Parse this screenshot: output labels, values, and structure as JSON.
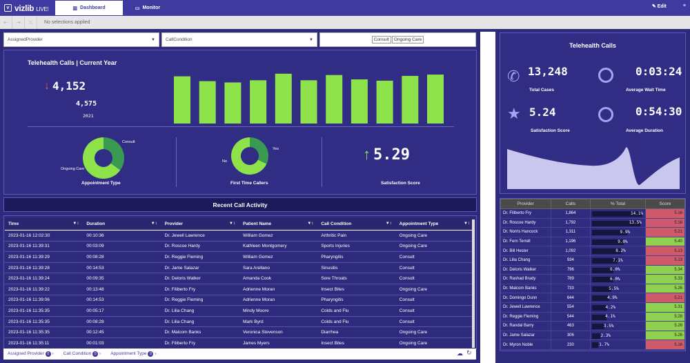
{
  "app": {
    "logo": "vizlib",
    "logo_suffix": "LIVE!"
  },
  "nav": {
    "tabs": [
      {
        "label": "Dashboard"
      },
      {
        "label": "Monitor"
      }
    ],
    "edit_label": "Edit"
  },
  "selections": {
    "text": "No selections applied"
  },
  "filters": {
    "provider": "AssignedProvider",
    "condition": "CallCondition",
    "chips": [
      "Consult",
      "Ongoing Care"
    ]
  },
  "overview": {
    "title": "Telehealth Calls | Current Year",
    "current_value": "4,152",
    "prior_value": "4,575",
    "prior_year": "2021",
    "bars": [
      10.8,
      9.7,
      9.4,
      9.9,
      11.4,
      9.9,
      11.1,
      10.1,
      9.8,
      10.9,
      11.2
    ],
    "appointment": {
      "label": "Appointment Type",
      "consult": "Consult",
      "ongoing": "Ongoing Care",
      "consult_share": 0.35
    },
    "first_time": {
      "label": "First Time Callers",
      "yes": "Yes",
      "no": "No",
      "yes_share": 0.32
    },
    "satisfaction": {
      "label": "Satisfaction Score",
      "value": "5.29"
    }
  },
  "recent": {
    "title": "Recent Call Activity"
  },
  "calls_table": {
    "headers": [
      "Time",
      "Duration",
      "Provider",
      "Patient Name",
      "Call Condition",
      "Appointment Type"
    ],
    "rows": [
      [
        "2023-01-16 12:02:30",
        "00:10:36",
        "Dr. Jewell Lawrence",
        "William Gomez",
        "Arthritic Pain",
        "Ongoing Care"
      ],
      [
        "2023-01-16 11:39:31",
        "00:03:09",
        "Dr. Roscoe Hardy",
        "Kathleen Montgomery",
        "Sports Injuries",
        "Ongoing Care"
      ],
      [
        "2023-01-16 11:39:29",
        "00:08:28",
        "Dr. Reggie Fleming",
        "William Gomez",
        "Pharyngitis",
        "Consult"
      ],
      [
        "2023-01-16 11:39:28",
        "00:14:53",
        "Dr. Jame Salazar",
        "Sara Arellano",
        "Sinusitis",
        "Consult"
      ],
      [
        "2023-01-16 11:39:24",
        "00:09:35",
        "Dr. Deloris Walker",
        "Amanda Cook",
        "Sore Throats",
        "Consult"
      ],
      [
        "2023-01-16 11:39:22",
        "00:13:48",
        "Dr. Filiberto Fry",
        "Adrienne Moran",
        "Insect Bites",
        "Ongoing Care"
      ],
      [
        "2023-01-16 11:39:06",
        "00:14:53",
        "Dr. Reggie Fleming",
        "Adrienne Moran",
        "Pharyngitis",
        "Consult"
      ],
      [
        "2023-01-16 11:35:35",
        "00:05:17",
        "Dr. Lilia Chang",
        "Mindy Moore",
        "Colds and Flu",
        "Consult"
      ],
      [
        "2023-01-16 11:35:35",
        "00:08:28",
        "Dr. Lilia Chang",
        "Mark Byrd",
        "Colds and Flu",
        "Consult"
      ],
      [
        "2023-01-16 11:35:35",
        "00:12:45",
        "Dr. Malcom Banks",
        "Veronica Stevenson",
        "Diarrhea",
        "Ongoing Care"
      ],
      [
        "2023-01-16 11:35:11",
        "00:01:03",
        "Dr. Filiberto Fry",
        "James Myers",
        "Insect Bites",
        "Ongoing Care"
      ]
    ]
  },
  "footer": {
    "items": [
      {
        "label": "Assigned Provider",
        "count": "0"
      },
      {
        "label": "Call Condition",
        "count": "0"
      },
      {
        "label": "Appointment Type",
        "count": "0"
      }
    ]
  },
  "kpis": {
    "title": "Telehealth Calls",
    "total_cases": {
      "value": "13,248",
      "label": "Total Cases"
    },
    "avg_wait": {
      "value": "0:03:24",
      "label": "Average Wait Time"
    },
    "satisfaction": {
      "value": "5.24",
      "label": "Satisfaction Score"
    },
    "avg_duration": {
      "value": "0:54:30",
      "label": "Average Duration"
    }
  },
  "providers": {
    "headers": [
      "Provider",
      "Calls",
      "% Total",
      "Score"
    ],
    "colors": {
      "good": "#8fd14f",
      "bad": "#cf5a6a",
      "neutral": "#b8e986"
    },
    "rows": [
      {
        "name": "Dr. Filiberto Fry",
        "calls": "1,864",
        "pct": "14.1%",
        "share": 14.1,
        "score": "5.16",
        "tone": "bad"
      },
      {
        "name": "Dr. Roscoe Hardy",
        "calls": "1,792",
        "pct": "13.5%",
        "share": 13.5,
        "score": "5.16",
        "tone": "bad"
      },
      {
        "name": "Dr. Norris Hancock",
        "calls": "1,311",
        "pct": "9.9%",
        "share": 9.9,
        "score": "5.21",
        "tone": "bad"
      },
      {
        "name": "Dr. Fern Terrell",
        "calls": "1,196",
        "pct": "9.0%",
        "share": 9.0,
        "score": "5.40",
        "tone": "good"
      },
      {
        "name": "Dr. Bill Hester",
        "calls": "1,092",
        "pct": "8.2%",
        "share": 8.2,
        "score": "5.13",
        "tone": "bad"
      },
      {
        "name": "Dr. Lilia Chang",
        "calls": "934",
        "pct": "7.1%",
        "share": 7.1,
        "score": "5.13",
        "tone": "bad"
      },
      {
        "name": "Dr. Deloris Walker",
        "calls": "796",
        "pct": "6.0%",
        "share": 6.0,
        "score": "5.34",
        "tone": "good"
      },
      {
        "name": "Dr. Rashad Brady",
        "calls": "789",
        "pct": "6.0%",
        "share": 6.0,
        "score": "5.33",
        "tone": "good"
      },
      {
        "name": "Dr. Malcom Banks",
        "calls": "733",
        "pct": "5.5%",
        "share": 5.5,
        "score": "5.26",
        "tone": "good"
      },
      {
        "name": "Dr. Domingo Dunn",
        "calls": "644",
        "pct": "4.9%",
        "share": 4.9,
        "score": "5.21",
        "tone": "bad"
      },
      {
        "name": "Dr. Jewell Lawrence",
        "calls": "554",
        "pct": "4.2%",
        "share": 4.2,
        "score": "5.31",
        "tone": "good"
      },
      {
        "name": "Dr. Reggie Fleming",
        "calls": "544",
        "pct": "4.1%",
        "share": 4.1,
        "score": "5.28",
        "tone": "good"
      },
      {
        "name": "Dr. Randal Barry",
        "calls": "463",
        "pct": "3.5%",
        "share": 3.5,
        "score": "5.26",
        "tone": "good"
      },
      {
        "name": "Dr. Jame Salazar",
        "calls": "306",
        "pct": "2.3%",
        "share": 2.3,
        "score": "5.26",
        "tone": "good"
      },
      {
        "name": "Dr. Myron Noble",
        "calls": "230",
        "pct": "1.7%",
        "share": 1.7,
        "score": "5.16",
        "tone": "bad"
      }
    ]
  },
  "colors": {
    "accent": "#3e3aa0",
    "green": "#8ee34b",
    "down": "#e05a5a",
    "wave": "#c9c7ee"
  }
}
